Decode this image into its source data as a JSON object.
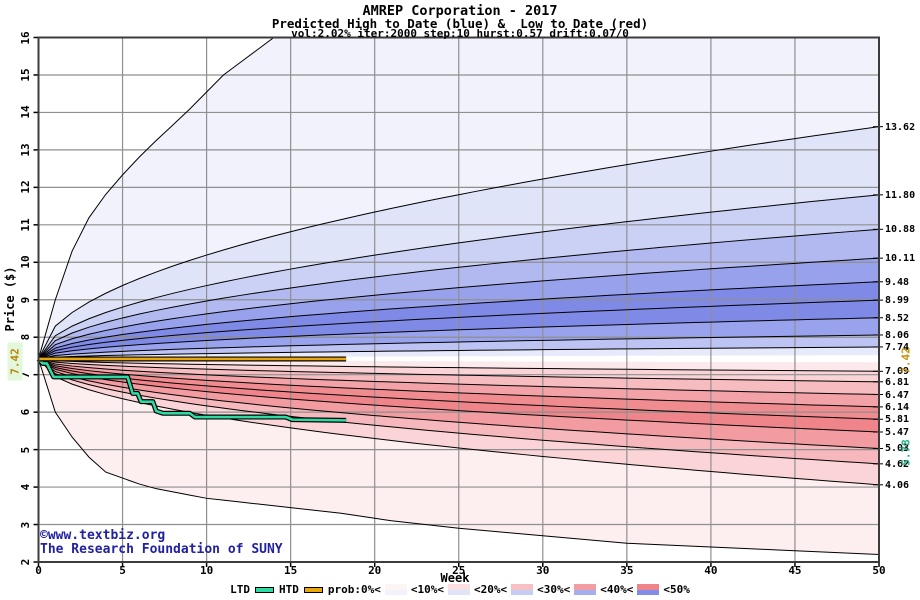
{
  "header": {
    "title": "AMREP Corporation - 2017",
    "subtitle": "Predicted High to Date (blue) &  Low to Date (red)",
    "params_line": "vol:2.02% iter:2000 step:10 hurst:0.57 drift:0.07/0"
  },
  "watermark": {
    "line1": "©www.textbiz.org",
    "line2": "The Research Foundation of SUNY",
    "color": "#2121a3"
  },
  "chart_data": {
    "type": "line",
    "subtype": "monte-carlo-probability-fan",
    "title": "AMREP Corporation - 2017",
    "subtitle": "Predicted High to Date (blue) &  Low to Date (red)",
    "params_line": "vol:2.02% iter:2000 step:10 hurst:0.57 drift:0.07/0",
    "xlabel": "Week",
    "ylabel": "Price ($)",
    "xlim": [
      0,
      50
    ],
    "ylim": [
      2,
      16
    ],
    "x_ticks": [
      0,
      5,
      10,
      15,
      20,
      25,
      30,
      35,
      40,
      45,
      50
    ],
    "y_ticks": [
      2,
      3,
      4,
      5,
      6,
      7,
      8,
      9,
      10,
      11,
      12,
      13,
      14,
      15,
      16
    ],
    "grid_on": true,
    "start_price": 7.42,
    "start_price_label": "7.42",
    "high_curves": {
      "description": "predicted High-to-Date probability decile boundaries (blue side), value at week 50",
      "percentile_ends_week50": [
        13.62,
        11.8,
        10.88,
        10.11,
        9.48,
        8.99,
        8.52,
        8.06,
        7.74
      ],
      "labels": [
        "13.62",
        "11.80",
        "10.88",
        "10.11",
        "9.48",
        "8.99",
        "8.52",
        "8.06",
        "7.74"
      ]
    },
    "low_curves": {
      "description": "predicted Low-to-Date probability decile boundaries (red side), value at week 50",
      "percentile_ends_week50": [
        7.09,
        6.81,
        6.47,
        6.14,
        5.81,
        5.47,
        5.03,
        4.62,
        4.06
      ],
      "labels": [
        "7.09",
        "6.81",
        "6.47",
        "6.14",
        "5.81",
        "5.47",
        "5.03",
        "4.62",
        "4.06"
      ]
    },
    "envelope_top_points": [
      [
        0,
        7.42
      ],
      [
        0.5,
        8.4
      ],
      [
        1,
        9.0
      ],
      [
        1.7,
        10.0
      ],
      [
        2.7,
        11.0
      ],
      [
        4.3,
        12.0
      ],
      [
        6.4,
        13.0
      ],
      [
        8.8,
        14.0
      ],
      [
        11,
        15.0
      ],
      [
        14,
        16.0
      ],
      [
        50,
        16.0
      ]
    ],
    "envelope_bottom_points": [
      [
        0,
        7.42
      ],
      [
        0.5,
        6.5
      ],
      [
        1,
        6.0
      ],
      [
        2.5,
        5.0
      ],
      [
        4,
        4.4
      ],
      [
        6.5,
        4.0
      ],
      [
        10,
        3.7
      ],
      [
        14,
        3.5
      ],
      [
        18,
        3.3
      ],
      [
        21,
        3.1
      ],
      [
        25,
        2.9
      ],
      [
        30,
        2.7
      ],
      [
        35,
        2.5
      ],
      [
        40,
        2.4
      ],
      [
        45,
        2.3
      ],
      [
        50,
        2.2
      ]
    ],
    "center_gap_ends": [
      7.33,
      7.52
    ],
    "htd_line": {
      "name": "HTD",
      "color": "#e8a70f",
      "end_label": "7.42",
      "points": [
        [
          0,
          7.42
        ],
        [
          18.3,
          7.42
        ]
      ]
    },
    "ltd_line": {
      "name": "LTD",
      "color": "#2ed9a2",
      "end_label": "5.78",
      "points": [
        [
          0,
          7.42
        ],
        [
          0.25,
          7.3
        ],
        [
          0.5,
          7.3
        ],
        [
          0.9,
          6.94
        ],
        [
          5.3,
          6.94
        ],
        [
          5.6,
          6.5
        ],
        [
          5.9,
          6.5
        ],
        [
          6.1,
          6.28
        ],
        [
          6.8,
          6.28
        ],
        [
          7.0,
          6.03
        ],
        [
          7.4,
          5.97
        ],
        [
          9.0,
          5.97
        ],
        [
          9.3,
          5.87
        ],
        [
          14.7,
          5.87
        ],
        [
          15.1,
          5.8
        ],
        [
          18.3,
          5.78
        ]
      ]
    },
    "band_colors_high_outer_to_inner": [
      "#f1f2fc",
      "#e0e4f9",
      "#cbd1f5",
      "#b1b9f0",
      "#98a1ec",
      "#7f89e6",
      "#7f89e6",
      "#99a2ec",
      "#bdc3f2",
      "#e7eafb"
    ],
    "band_colors_low_inner_to_outer": [
      "#fce9eb",
      "#f9d3d6",
      "#f6bcc0",
      "#f3a3a8",
      "#f08b90",
      "#ef858a",
      "#f29ba0",
      "#f6b8bc",
      "#fad4d7",
      "#fdeef0"
    ],
    "grid_color": "#8f8f8f",
    "border_color": "#3c3c3c",
    "curve_color": "#000000"
  },
  "legend": {
    "tokens": [
      {
        "t": "label",
        "v": "LTD"
      },
      {
        "t": "line",
        "color": "#2ed9a2"
      },
      {
        "t": "label",
        "v": "HTD"
      },
      {
        "t": "line",
        "color": "#e8a70f"
      },
      {
        "t": "label",
        "v": "prob:0%<"
      },
      {
        "t": "swatch",
        "top": "#fdf4f5",
        "bottom": "#f1f2fb"
      },
      {
        "t": "label",
        "v": "<10%<"
      },
      {
        "t": "swatch",
        "top": "#fbdfe2",
        "bottom": "#e0e4f9"
      },
      {
        "t": "label",
        "v": "<20%<"
      },
      {
        "t": "swatch",
        "top": "#f7c0c4",
        "bottom": "#c6cdf4"
      },
      {
        "t": "label",
        "v": "<30%<"
      },
      {
        "t": "swatch",
        "top": "#f39da2",
        "bottom": "#a6aeee"
      },
      {
        "t": "label",
        "v": "<40%<"
      },
      {
        "t": "swatch",
        "top": "#ef858a",
        "bottom": "#838de7"
      },
      {
        "t": "label",
        "v": "<50%"
      }
    ]
  }
}
